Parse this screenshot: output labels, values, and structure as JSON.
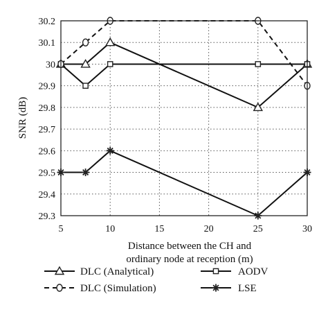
{
  "chart_data": {
    "type": "line",
    "title": "",
    "xlabel": "Distance between the CH and ordinary node at reception (m)",
    "ylabel": "SNR (dB)",
    "x": [
      5,
      7.5,
      10,
      25,
      30
    ],
    "xlim": [
      5,
      30
    ],
    "ylim": [
      29.3,
      30.2
    ],
    "xticks": [
      5,
      10,
      15,
      20,
      25,
      30
    ],
    "yticks": [
      29.3,
      29.4,
      29.5,
      29.6,
      29.7,
      29.8,
      29.9,
      30,
      30.1,
      30.2
    ],
    "xtick_labels": [
      "5",
      "10",
      "15",
      "20",
      "25",
      "30"
    ],
    "ytick_labels": [
      "29.3",
      "29.4",
      "29.5",
      "29.6",
      "29.7",
      "29.8",
      "29.9",
      "30",
      "30.1",
      "30.2"
    ],
    "grid": true,
    "legend_position": "bottom",
    "series": [
      {
        "name": "DLC (Analytical)",
        "marker": "triangle",
        "line": "solid",
        "values": [
          30.0,
          30.0,
          30.1,
          29.8,
          30.0
        ]
      },
      {
        "name": "AODV",
        "marker": "square",
        "line": "solid",
        "values": [
          30.0,
          29.9,
          30.0,
          30.0,
          30.0
        ]
      },
      {
        "name": "DLC (Simulation)",
        "marker": "circle",
        "line": "dashed",
        "values": [
          30.0,
          30.1,
          30.2,
          30.2,
          29.9
        ]
      },
      {
        "name": "LSE",
        "marker": "star",
        "line": "solid",
        "values": [
          29.5,
          29.5,
          29.6,
          29.3,
          29.5
        ]
      }
    ]
  }
}
